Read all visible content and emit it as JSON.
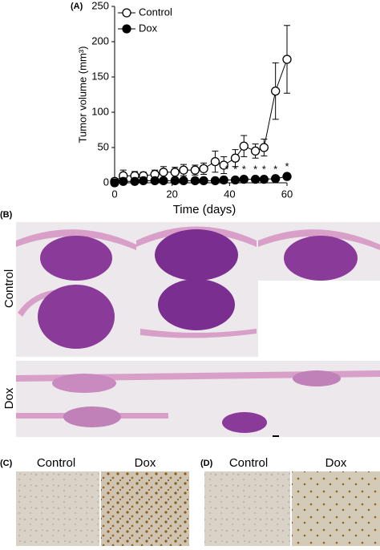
{
  "chart_data": {
    "type": "line",
    "panel_label": "(A)",
    "xlabel": "Time (days)",
    "ylabel": "Tumor volume (mm³)",
    "x": [
      0,
      3,
      7,
      10,
      14,
      17,
      21,
      24,
      28,
      31,
      35,
      38,
      42,
      45,
      49,
      52,
      56,
      60
    ],
    "series": [
      {
        "name": "Control",
        "color": "#000000",
        "marker_fill": "#ffffff",
        "values": [
          2,
          10,
          10,
          10,
          12,
          15,
          15,
          18,
          18,
          20,
          30,
          25,
          35,
          52,
          45,
          50,
          130,
          175
        ],
        "errors": [
          0,
          8,
          6,
          5,
          6,
          8,
          7,
          8,
          7,
          8,
          15,
          12,
          12,
          15,
          10,
          12,
          40,
          48
        ]
      },
      {
        "name": "Dox",
        "color": "#000000",
        "marker_fill": "#000000",
        "values": [
          0,
          2,
          2,
          3,
          3,
          3,
          3,
          3,
          3,
          3,
          3,
          4,
          4,
          5,
          5,
          5,
          6,
          9
        ],
        "errors": [
          0,
          1,
          1,
          1,
          1,
          1,
          1,
          1,
          1,
          1,
          1,
          2,
          2,
          2,
          2,
          2,
          2,
          4
        ]
      }
    ],
    "annotations": [
      {
        "text": "*",
        "x": 39,
        "y": 18
      },
      {
        "text": "*",
        "x": 42,
        "y": 18
      },
      {
        "text": "*",
        "x": 45,
        "y": 18
      },
      {
        "text": "*",
        "x": 49,
        "y": 18
      },
      {
        "text": "*",
        "x": 52,
        "y": 18
      },
      {
        "text": "*",
        "x": 56,
        "y": 18
      },
      {
        "text": "*",
        "x": 60,
        "y": 22
      }
    ],
    "xlim": [
      0,
      60
    ],
    "xticks": [
      0,
      20,
      40,
      60
    ],
    "ylim": [
      0,
      250
    ],
    "yticks": [
      0,
      50,
      100,
      150,
      200,
      250
    ],
    "legend": "top-left"
  },
  "panel_b": {
    "label": "(B)",
    "rows": [
      "Control",
      "Dox"
    ]
  },
  "panel_c": {
    "label": "(C)",
    "columns": [
      "Control",
      "Dox"
    ]
  },
  "panel_d": {
    "label": "(D)",
    "columns": [
      "Control",
      "Dox"
    ]
  }
}
